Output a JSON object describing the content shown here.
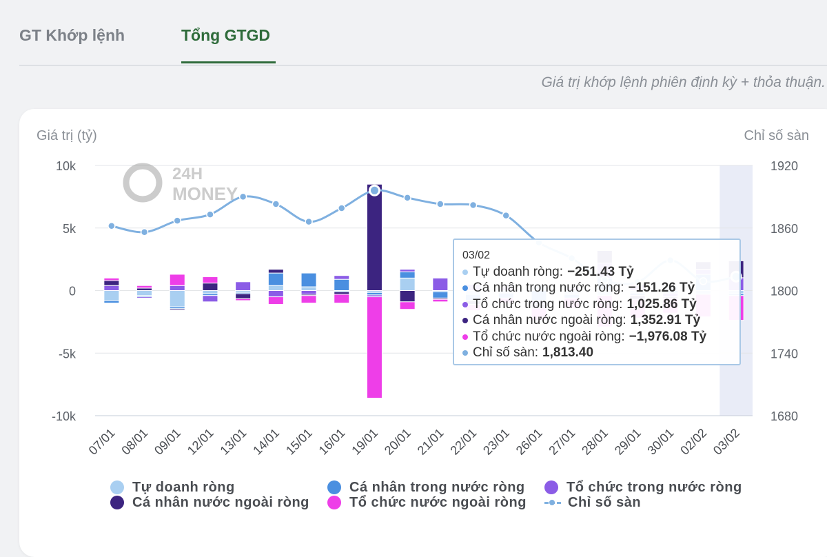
{
  "tabs": [
    {
      "label": "GT Khớp lệnh",
      "active": false
    },
    {
      "label": "Tổng GTGD",
      "active": true
    }
  ],
  "note": "Giá trị khớp lệnh phiên định kỳ + thỏa thuận.",
  "watermark": {
    "line1": "24H",
    "line2": "MONEY"
  },
  "colors": {
    "tu_doanh": "#a9cff1",
    "ca_nhan_trong_nuoc": "#4a8fe0",
    "to_chuc_trong_nuoc": "#8b5ce6",
    "ca_nhan_nuoc_ngoai": "#3c2480",
    "to_chuc_nuoc_ngoai": "#ee3ee8",
    "chi_so": "#7fb0e0",
    "accent": "#2e6b3a"
  },
  "chart_data": {
    "type": "bar",
    "stacked": true,
    "categories": [
      "07/01",
      "08/01",
      "09/01",
      "12/01",
      "13/01",
      "14/01",
      "15/01",
      "16/01",
      "19/01",
      "20/01",
      "21/01",
      "22/01",
      "23/01",
      "26/01",
      "27/01",
      "28/01",
      "29/01",
      "30/01",
      "02/02",
      "03/02"
    ],
    "ylabel_left": "Giá trị (tỷ)",
    "ylabel_right": "Chỉ số sàn",
    "ylim_left": [
      -10000,
      10000
    ],
    "yticks_left": [
      "10k",
      "5k",
      "0",
      "-5k",
      "-10k"
    ],
    "ylim_right": [
      1680,
      1920
    ],
    "yticks_right": [
      "1920",
      "1860",
      "1800",
      "1740",
      "1680"
    ],
    "grid": true,
    "legend_position": "bottom",
    "series": [
      {
        "name": "Tự doanh ròng",
        "values": [
          -800,
          -400,
          -1300,
          -250,
          -150,
          400,
          300,
          -100,
          -150,
          1000,
          -100,
          -300,
          -200,
          500,
          -300,
          -400,
          -200,
          300,
          -300,
          -251.43
        ]
      },
      {
        "name": "Cá nhân trong nước ròng",
        "values": [
          -200,
          -100,
          -150,
          -150,
          -100,
          1000,
          1100,
          900,
          -200,
          500,
          -500,
          -500,
          -400,
          -800,
          -300,
          1000,
          -200,
          -200,
          1300,
          -151.26
        ]
      },
      {
        "name": "Tổ chức trong nước ròng",
        "values": [
          400,
          -100,
          400,
          -500,
          700,
          -500,
          -300,
          300,
          -150,
          200,
          1000,
          500,
          300,
          -300,
          200,
          1200,
          500,
          -300,
          400,
          1025.86
        ]
      },
      {
        "name": "Cá nhân nước ngoài ròng",
        "values": [
          400,
          200,
          -100,
          600,
          -400,
          300,
          -100,
          -200,
          8500,
          -900,
          -100,
          -300,
          200,
          -300,
          100,
          1000,
          -300,
          -100,
          600,
          1352.91
        ]
      },
      {
        "name": "Tổ chức nước ngoài ròng",
        "values": [
          200,
          200,
          900,
          500,
          -150,
          -600,
          -600,
          -700,
          -8100,
          -600,
          -200,
          -500,
          -400,
          -1000,
          -800,
          -2500,
          -1500,
          -1200,
          -1800,
          -1976.08
        ]
      },
      {
        "name": "Chỉ số sàn",
        "type": "line",
        "axis": "right",
        "values": [
          1862,
          1856,
          1867,
          1873,
          1890,
          1883,
          1866,
          1879,
          1896,
          1889,
          1883,
          1882,
          1872,
          1846,
          1831,
          1810,
          1808,
          1829,
          1809,
          1813.4
        ]
      }
    ]
  },
  "tooltip": {
    "date": "03/02",
    "rows": [
      {
        "label": "Tự doanh ròng:",
        "value": "−251.43 Tỷ"
      },
      {
        "label": "Cá nhân trong nước ròng:",
        "value": "−151.26 Tỷ"
      },
      {
        "label": "Tổ chức trong nước ròng:",
        "value": "1,025.86 Tỷ"
      },
      {
        "label": "Cá nhân nước ngoài ròng:",
        "value": "1,352.91 Tỷ"
      },
      {
        "label": "Tổ chức nước ngoài ròng:",
        "value": "−1,976.08 Tỷ"
      },
      {
        "label": "Chỉ số sàn:",
        "value": "1,813.40"
      }
    ]
  }
}
